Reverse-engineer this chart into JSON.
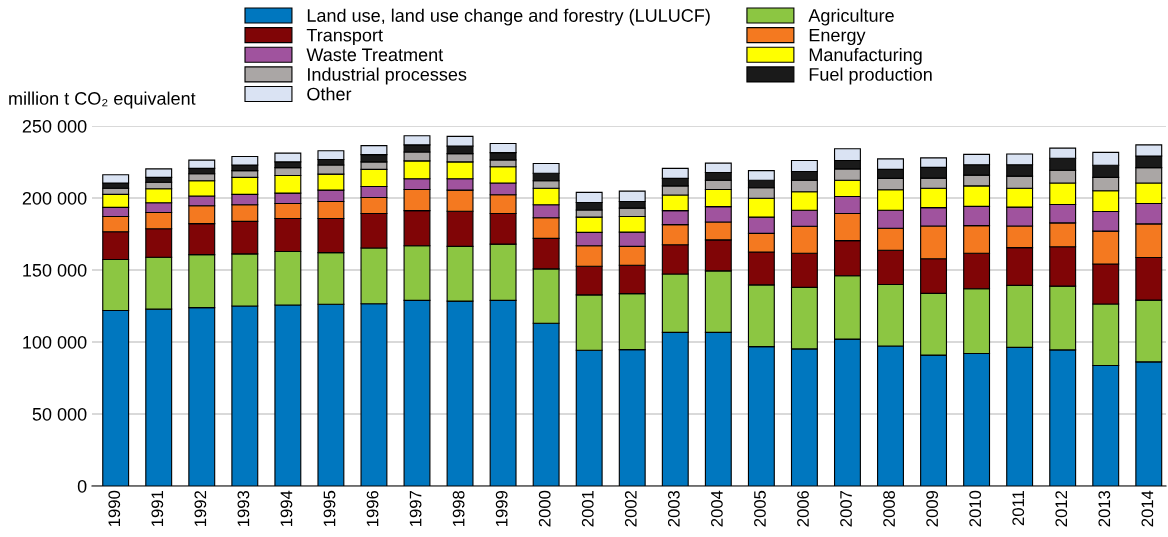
{
  "chart_data": {
    "type": "bar",
    "stacked": true,
    "ylabel": "million t CO₂ equivalent",
    "categories": [
      "1990",
      "1991",
      "1992",
      "1993",
      "1994",
      "1995",
      "1996",
      "1997",
      "1998",
      "1999",
      "2000",
      "2001",
      "2002",
      "2003",
      "2004",
      "2005",
      "2006",
      "2007",
      "2008",
      "2009",
      "2010",
      "2011",
      "2012",
      "2013",
      "2014"
    ],
    "series": [
      {
        "name": "Land use, land use change and forestry (LULUCF)",
        "color": "#0077bf",
        "values": [
          121900,
          122800,
          123900,
          125000,
          125700,
          126200,
          126600,
          128900,
          128400,
          128900,
          113000,
          94300,
          94700,
          106700,
          106700,
          96800,
          95200,
          102000,
          97200,
          90900,
          92000,
          96300,
          94500,
          83700,
          86200
        ]
      },
      {
        "name": "Agriculture",
        "color": "#8cc642",
        "values": [
          35400,
          36100,
          36800,
          36200,
          37100,
          35900,
          38700,
          37900,
          38000,
          39100,
          37800,
          38400,
          38900,
          40500,
          42700,
          42900,
          42700,
          44000,
          42700,
          42900,
          45000,
          43000,
          44300,
          42700,
          42900
        ]
      },
      {
        "name": "Transport",
        "color": "#800506",
        "values": [
          19300,
          19700,
          21500,
          22600,
          23000,
          23700,
          23900,
          24400,
          24400,
          21200,
          21200,
          19900,
          19700,
          20300,
          21500,
          22800,
          23700,
          24400,
          23800,
          24000,
          24600,
          26200,
          27300,
          27800,
          29600
        ]
      },
      {
        "name": "Energy",
        "color": "#f47920",
        "values": [
          10600,
          11300,
          12400,
          11500,
          10400,
          11800,
          11100,
          14700,
          14700,
          13100,
          14300,
          14200,
          13100,
          14000,
          12400,
          12900,
          18800,
          18800,
          15300,
          22800,
          19200,
          15100,
          16600,
          22800,
          23300
        ]
      },
      {
        "name": "Waste Treatment",
        "color": "#a0539e",
        "values": [
          6300,
          6800,
          6800,
          7200,
          7200,
          7900,
          7700,
          7500,
          7900,
          8100,
          9000,
          9300,
          9900,
          9700,
          10700,
          11300,
          11100,
          11800,
          12500,
          12700,
          13400,
          13100,
          12800,
          13600,
          14200
        ]
      },
      {
        "name": "Manufacturing",
        "color": "#ffff00",
        "values": [
          9000,
          9700,
          10600,
          11800,
          12200,
          11100,
          11900,
          12400,
          11700,
          11300,
          11500,
          10600,
          10900,
          10900,
          11900,
          13100,
          12800,
          11300,
          14200,
          13500,
          14200,
          13100,
          14900,
          14400,
          14200
        ]
      },
      {
        "name": "Industrial processes",
        "color": "#aaa6a5",
        "values": [
          4300,
          4500,
          4800,
          4700,
          5500,
          6300,
          5200,
          6100,
          5700,
          4800,
          5200,
          5000,
          5800,
          6300,
          6400,
          7300,
          8000,
          7900,
          7900,
          7000,
          7500,
          8400,
          8900,
          9300,
          10700
        ]
      },
      {
        "name": "Fuel production",
        "color": "#1a1a1a",
        "values": [
          3600,
          3400,
          3800,
          3900,
          4000,
          3800,
          5000,
          5000,
          5200,
          5000,
          5200,
          5200,
          4600,
          5200,
          5400,
          5200,
          6100,
          5800,
          6300,
          7500,
          7200,
          7900,
          8300,
          8400,
          8100
        ]
      },
      {
        "name": "Other",
        "color": "#dae3f3",
        "values": [
          5700,
          5900,
          5700,
          5900,
          6100,
          6100,
          6300,
          6300,
          6800,
          6300,
          6800,
          7000,
          7200,
          7000,
          6500,
          6700,
          7600,
          8200,
          7300,
          6600,
          7200,
          7500,
          7000,
          9000,
          7700
        ]
      }
    ],
    "ylim": [
      0,
      250000
    ],
    "yticks": [
      {
        "value": 0,
        "label": "0"
      },
      {
        "value": 50000,
        "label": "50 000"
      },
      {
        "value": 100000,
        "label": "100 000"
      },
      {
        "value": 150000,
        "label": "150 000"
      },
      {
        "value": 200000,
        "label": "200 000"
      },
      {
        "value": 250000,
        "label": "250 000"
      }
    ],
    "grid": "y",
    "legend": "top"
  }
}
